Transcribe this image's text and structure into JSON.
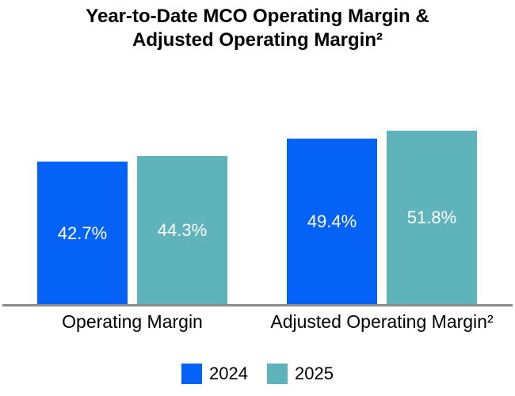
{
  "chart_data": {
    "type": "bar",
    "title": "Year-to-Date MCO Operating Margin & Adjusted Operating Margin²",
    "title_lines": [
      "Year-to-Date MCO Operating Margin &",
      "Adjusted Operating Margin²"
    ],
    "categories": [
      "Operating Margin",
      "Adjusted Operating Margin²"
    ],
    "series": [
      {
        "name": "2024",
        "color": "#0562f6",
        "values": [
          42.7,
          49.4
        ],
        "labels": [
          "42.7%",
          "49.4%"
        ]
      },
      {
        "name": "2025",
        "color": "#5fb4bb",
        "values": [
          44.3,
          51.8
        ],
        "labels": [
          "44.3%",
          "51.8%"
        ]
      }
    ],
    "value_suffix": "%",
    "value_label_position": "center",
    "value_label_color": "#ffffff",
    "grid": false,
    "y_axis_visible": false,
    "x_axis_line_color": "#8c8c8c",
    "legend_position": "bottom"
  }
}
